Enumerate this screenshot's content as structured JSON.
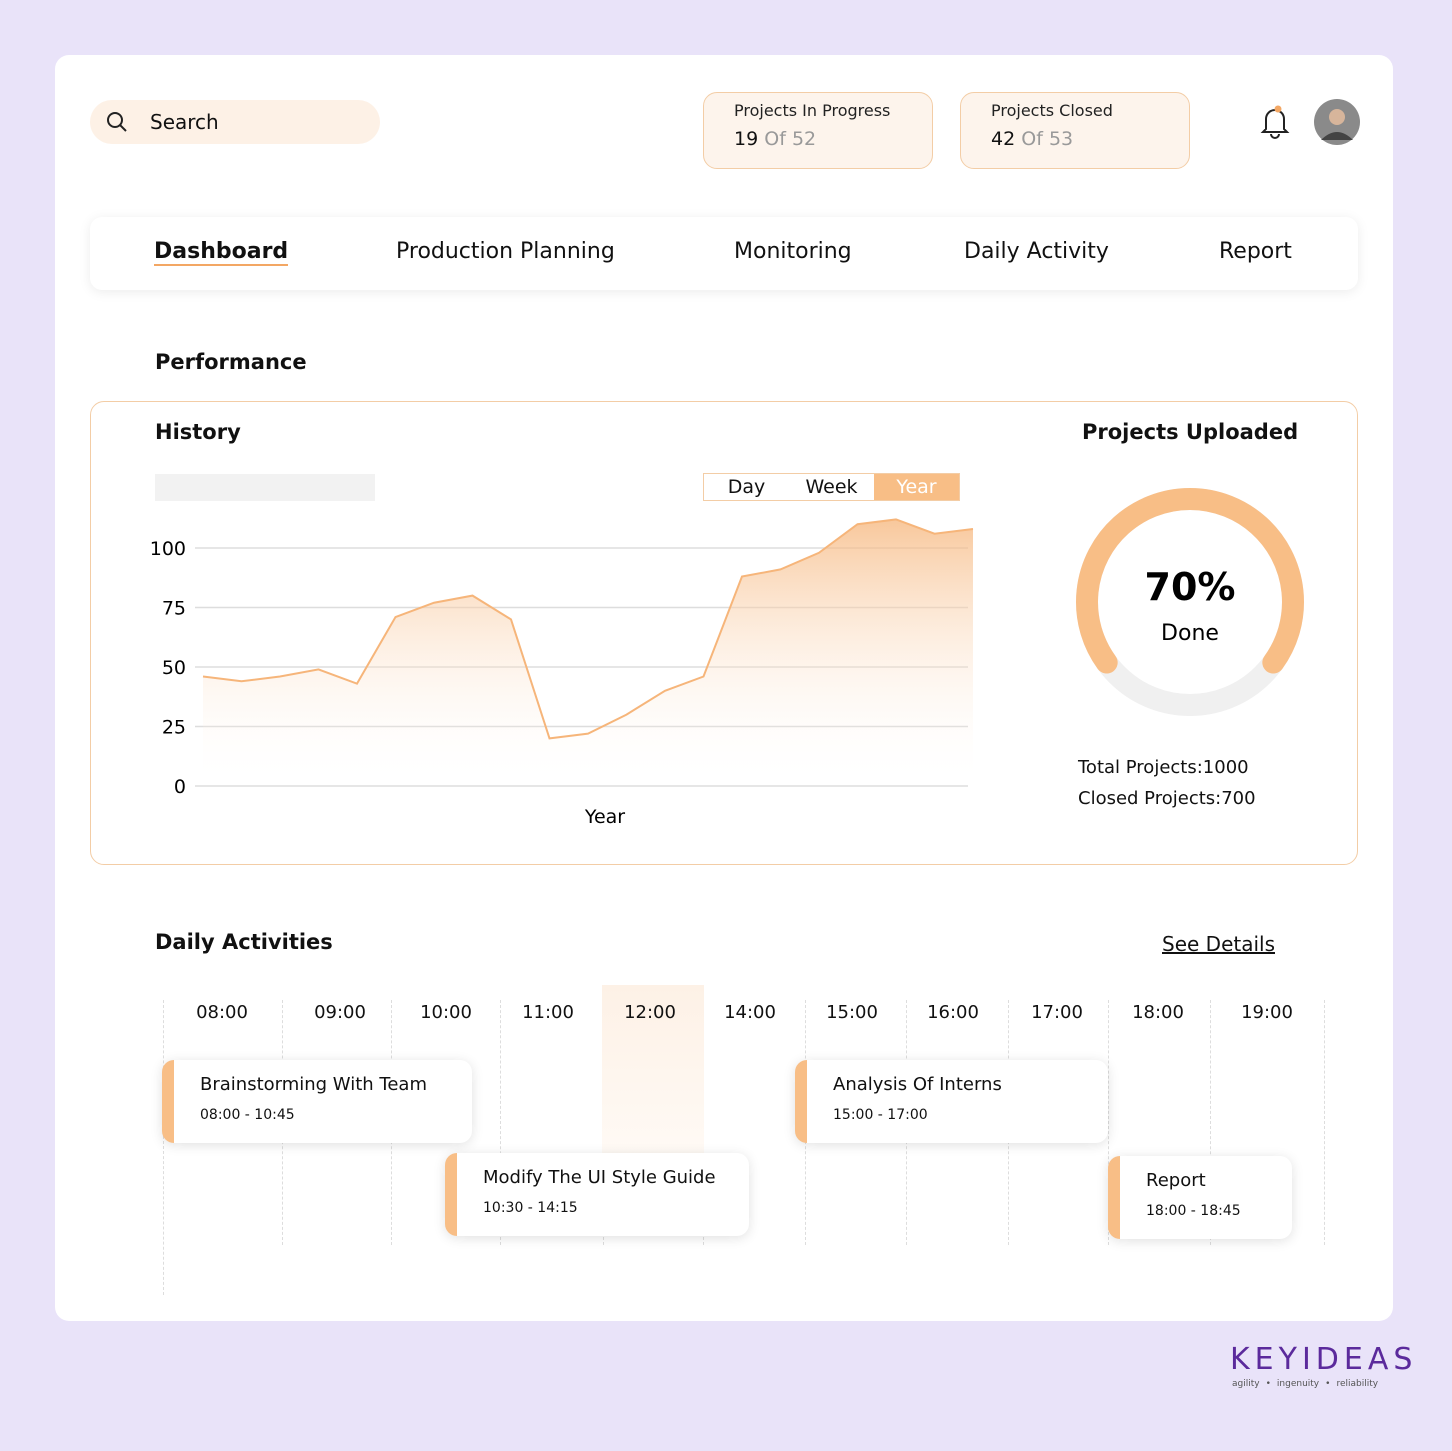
{
  "header": {
    "search_placeholder": "Search",
    "stats": [
      {
        "label": "Projects In Progress",
        "count": 19,
        "of": "Of",
        "total": 52
      },
      {
        "label": "Projects Closed",
        "count": 42,
        "of": "Of",
        "total": 53
      }
    ]
  },
  "nav": {
    "items": [
      "Dashboard",
      "Production Planning",
      "Monitoring",
      "Daily Activity",
      "Report"
    ],
    "active": 0
  },
  "performance": {
    "title": "Performance",
    "history": {
      "title": "History",
      "tabs": [
        "Day",
        "Week",
        "Year"
      ],
      "active_tab": 2,
      "chart_data": {
        "type": "area",
        "x_label": "Year",
        "values": [
          46,
          44,
          46,
          49,
          43,
          71,
          77,
          80,
          70,
          20,
          22,
          30,
          40,
          46,
          88,
          91,
          98,
          110,
          112,
          106,
          108
        ],
        "color": "#f6b57a",
        "ylim": [
          0,
          100
        ],
        "yticks": [
          0,
          25,
          50,
          75,
          100
        ],
        "grid": true
      }
    },
    "projects_uploaded": {
      "title": "Projects Uploaded",
      "chart_data": {
        "type": "donut",
        "value": 70,
        "value_label": "70%",
        "caption": "Done",
        "color": "#f8be86",
        "track_color": "#f0f0f0"
      },
      "totals": [
        {
          "label": "Total Projects:",
          "value": 1000
        },
        {
          "label": "Closed Projects:",
          "value": 700
        }
      ]
    }
  },
  "daily_activities": {
    "title": "Daily Activities",
    "link": "See Details",
    "times": [
      "08:00",
      "09:00",
      "10:00",
      "11:00",
      "12:00",
      "14:00",
      "15:00",
      "16:00",
      "17:00",
      "18:00",
      "19:00"
    ],
    "highlight": 4,
    "events": [
      {
        "title": "Brainstorming With Team",
        "time": "08:00 - 10:45"
      },
      {
        "title": "Modify The UI Style Guide",
        "time": "10:30 - 14:15"
      },
      {
        "title": "Analysis Of Interns",
        "time": "15:00 - 17:00"
      },
      {
        "title": "Report",
        "time": "18:00 - 18:45"
      }
    ]
  },
  "brand": {
    "name": "KEYIDEAS",
    "tagline": [
      "agility",
      "ingenuity",
      "reliability"
    ]
  }
}
